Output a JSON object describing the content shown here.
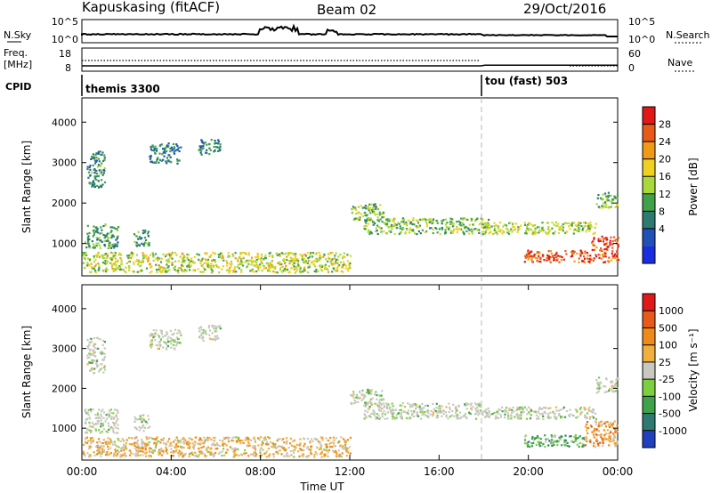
{
  "header": {
    "station": "Kapuskasing (fitACF)",
    "beam": "Beam 02",
    "date": "29/Oct/2016"
  },
  "status_panels": {
    "nsky_label": "N.Sky",
    "nsky_ticks": [
      "10^5",
      "10^0"
    ],
    "nsearch_label": "N.Search",
    "nsearch_ticks": [
      "10^5",
      "10^0"
    ],
    "freq_label": "Freq.",
    "freq_unit": "[MHz]",
    "freq_ticks": [
      "18",
      "8"
    ],
    "nave_label": "Nave",
    "nave_ticks": [
      "60",
      "0"
    ],
    "cpid_label": "CPID",
    "cpid_segments": [
      {
        "name": "themis 3300",
        "start_hour": 0
      },
      {
        "name": "tou (fast) 503",
        "start_hour": 18
      }
    ]
  },
  "chart_data": [
    {
      "type": "heatmap",
      "name": "power",
      "ylabel": "Slant Range [km]",
      "xlim": [
        0,
        24
      ],
      "ylim": [
        200,
        4600
      ],
      "yticks": [
        "4000",
        "3000",
        "2000",
        "1000"
      ],
      "colorbar": {
        "label": "Power [dB]",
        "ticks": [
          "28",
          "24",
          "20",
          "16",
          "12",
          "8",
          "4"
        ],
        "colors": [
          "#1a2ee0",
          "#2050b8",
          "#2e7a70",
          "#3fa24a",
          "#a8d83a",
          "#f0d020",
          "#f09a18",
          "#e85a18",
          "#e01818"
        ]
      },
      "regions": [
        {
          "t0": 0.0,
          "t1": 12.0,
          "r0": 300,
          "r1": 800,
          "level": 0.55
        },
        {
          "t0": 0.1,
          "t1": 1.6,
          "r0": 900,
          "r1": 1500,
          "level": 0.35
        },
        {
          "t0": 2.3,
          "t1": 3.0,
          "r0": 950,
          "r1": 1350,
          "level": 0.3
        },
        {
          "t0": 0.2,
          "t1": 1.0,
          "r0": 2400,
          "r1": 3300,
          "level": 0.3
        },
        {
          "t0": 3.0,
          "t1": 4.4,
          "r0": 3000,
          "r1": 3500,
          "level": 0.25
        },
        {
          "t0": 5.2,
          "t1": 6.2,
          "r0": 3200,
          "r1": 3600,
          "level": 0.25
        },
        {
          "t0": 12.0,
          "t1": 13.5,
          "r0": 1600,
          "r1": 2000,
          "level": 0.45
        },
        {
          "t0": 12.6,
          "t1": 18.2,
          "r0": 1250,
          "r1": 1650,
          "level": 0.45
        },
        {
          "t0": 18.0,
          "t1": 23.0,
          "r0": 1250,
          "r1": 1550,
          "level": 0.5
        },
        {
          "t0": 19.8,
          "t1": 24.0,
          "r0": 550,
          "r1": 850,
          "level": 0.9
        },
        {
          "t0": 22.8,
          "t1": 24.0,
          "r0": 850,
          "r1": 1200,
          "level": 0.95
        },
        {
          "t0": 23.0,
          "t1": 24.0,
          "r0": 1900,
          "r1": 2300,
          "level": 0.4
        }
      ]
    },
    {
      "type": "heatmap",
      "name": "velocity",
      "ylabel": "Slant Range [km]",
      "xlabel": "Time UT",
      "xlim": [
        0,
        24
      ],
      "ylim": [
        200,
        4600
      ],
      "xticks": [
        "00:00",
        "04:00",
        "08:00",
        "12:00",
        "16:00",
        "20:00",
        "00:00"
      ],
      "yticks": [
        "4000",
        "3000",
        "2000",
        "1000"
      ],
      "colorbar": {
        "label": "Velocity [m s⁻¹]",
        "ticks": [
          "1000",
          "500",
          "100",
          "25",
          "-25",
          "-100",
          "-500",
          "-1000"
        ],
        "colors": [
          "#2040c0",
          "#2e7a70",
          "#3fa24a",
          "#7cd040",
          "#c8c8c0",
          "#f0b040",
          "#f08a18",
          "#e85a18",
          "#e01818"
        ]
      },
      "regions": [
        {
          "t0": 0.0,
          "t1": 12.0,
          "r0": 300,
          "r1": 800,
          "level": 0.6
        },
        {
          "t0": 0.1,
          "t1": 1.6,
          "r0": 900,
          "r1": 1500,
          "level": 0.45
        },
        {
          "t0": 2.3,
          "t1": 3.0,
          "r0": 950,
          "r1": 1350,
          "level": 0.45
        },
        {
          "t0": 0.2,
          "t1": 1.0,
          "r0": 2400,
          "r1": 3300,
          "level": 0.45
        },
        {
          "t0": 3.0,
          "t1": 4.4,
          "r0": 3000,
          "r1": 3500,
          "level": 0.45
        },
        {
          "t0": 5.2,
          "t1": 6.2,
          "r0": 3200,
          "r1": 3600,
          "level": 0.45
        },
        {
          "t0": 12.0,
          "t1": 13.5,
          "r0": 1600,
          "r1": 2000,
          "level": 0.45
        },
        {
          "t0": 12.6,
          "t1": 18.2,
          "r0": 1250,
          "r1": 1650,
          "level": 0.45
        },
        {
          "t0": 18.0,
          "t1": 23.0,
          "r0": 1250,
          "r1": 1550,
          "level": 0.45
        },
        {
          "t0": 19.8,
          "t1": 22.5,
          "r0": 550,
          "r1": 850,
          "level": 0.3
        },
        {
          "t0": 22.5,
          "t1": 24.0,
          "r0": 550,
          "r1": 1200,
          "level": 0.7
        },
        {
          "t0": 23.0,
          "t1": 24.0,
          "r0": 1900,
          "r1": 2300,
          "level": 0.45
        }
      ]
    }
  ]
}
